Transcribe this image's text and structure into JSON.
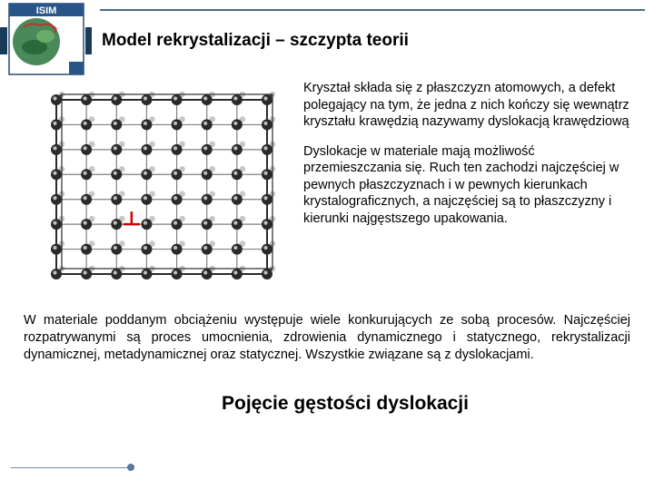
{
  "header": {
    "title": "Model rekrystalizacji – szczypta teorii",
    "logo_text": "ISIM",
    "title_color": "#000000",
    "bar_dark": "#1a3a5a"
  },
  "diagram": {
    "type": "crystal-lattice",
    "grid": {
      "rows": 8,
      "cols": 8
    },
    "atom_radius": 6,
    "atom_color": "#2a2a2a",
    "bond_color": "#808080",
    "frame_color": "#2a2a2a",
    "dislocation_marker": {
      "row": 5,
      "col": 2.5,
      "color": "#d00000"
    }
  },
  "text": {
    "para1": "Kryształ składa się z płaszczyzn atomowych, a defekt polegający na tym, że jedna z nich kończy się wewnątrz kryształu krawędzią nazywamy dyslokacją krawędziową",
    "para2": "Dyslokacje w materiale mają możliwość przemieszczania się. Ruch ten zachodzi najczęściej w pewnych płaszczyznach i w pewnych kierunkach krystalograficznych, a najczęściej są to płaszczyzny i kierunki najgęstszego upakowania.",
    "para3": "W materiale poddanym obciążeniu występuje wiele konkurujących ze sobą procesów. Najczęściej rozpatrywanymi są proces umocnienia, zdrowienia dynamicznego i statycznego, rekrystalizacji dynamicznej, metadynamicznej oraz statycznej. Wszystkie związane są z dyslokacjami.",
    "footer_title": "Pojęcie gęstości dyslokacji"
  },
  "colors": {
    "accent_line": "#5a7a9a",
    "text": "#000000"
  }
}
